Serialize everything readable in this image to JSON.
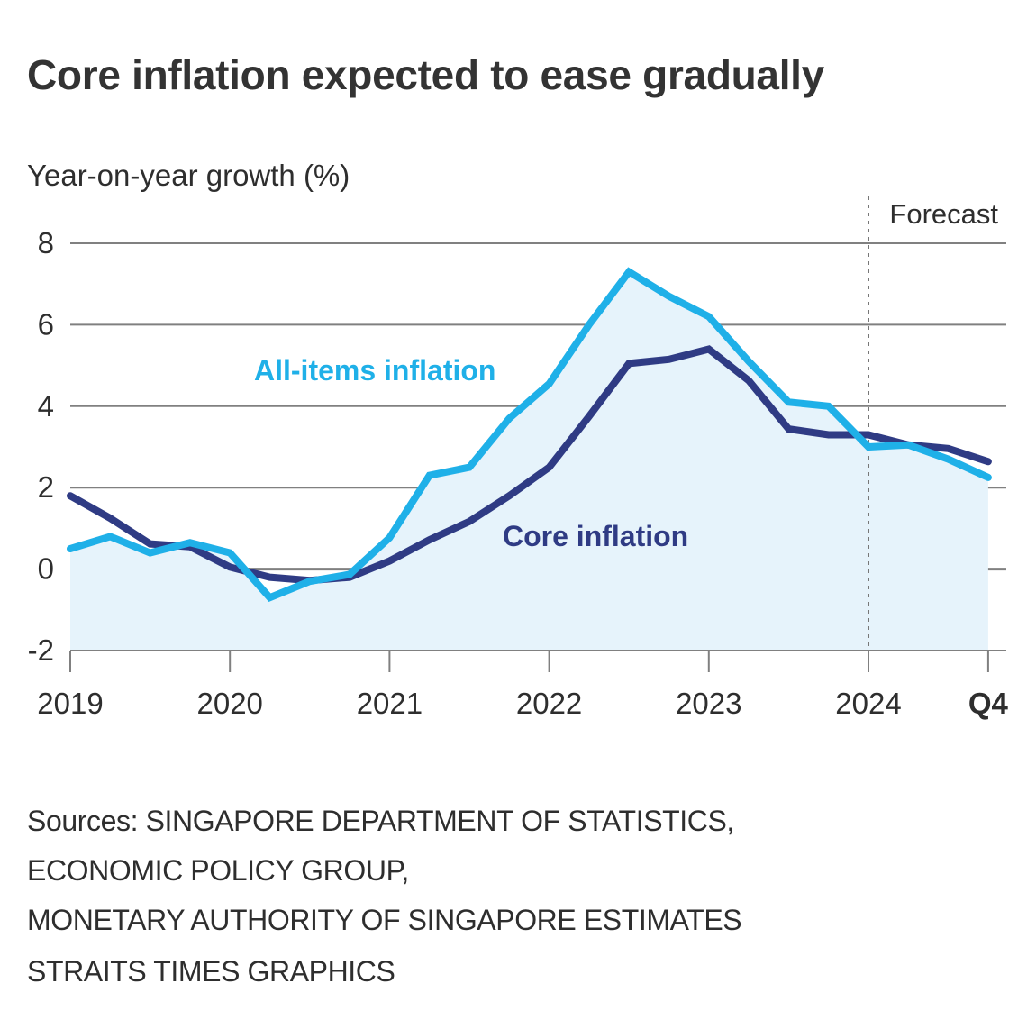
{
  "header": {
    "title": "Core inflation expected to ease gradually"
  },
  "footer": {
    "sources": [
      "Sources: SINGAPORE DEPARTMENT OF STATISTICS,",
      "ECONOMIC POLICY GROUP,",
      "MONETARY AUTHORITY OF SINGAPORE ESTIMATES"
    ],
    "credit": "STRAITS TIMES GRAPHICS"
  },
  "colors": {
    "all_items": "#1fb0e8",
    "core": "#2f3b84",
    "fill": "#e6f3fb",
    "grid": "#808080",
    "text": "#2e2e2e"
  },
  "chart_data": {
    "type": "line",
    "title": "Core inflation expected to ease gradually",
    "xlabel": "",
    "ylabel": "Year-on-year growth (%)",
    "ylim": [
      -2,
      8
    ],
    "yticks": [
      8,
      6,
      4,
      2,
      0,
      -2
    ],
    "grid": true,
    "x": [
      "2019Q1",
      "2019Q2",
      "2019Q3",
      "2019Q4",
      "2020Q1",
      "2020Q2",
      "2020Q3",
      "2020Q4",
      "2021Q1",
      "2021Q2",
      "2021Q3",
      "2021Q4",
      "2022Q1",
      "2022Q2",
      "2022Q3",
      "2022Q4",
      "2023Q1",
      "2023Q2",
      "2023Q3",
      "2023Q4",
      "2024Q1",
      "2024Q2",
      "2024Q3",
      "2024Q4"
    ],
    "xtick_labels": [
      {
        "label": "2019",
        "at": "2019Q1",
        "bold": false
      },
      {
        "label": "2020",
        "at": "2020Q1",
        "bold": false
      },
      {
        "label": "2021",
        "at": "2021Q1",
        "bold": false
      },
      {
        "label": "2022",
        "at": "2022Q1",
        "bold": false
      },
      {
        "label": "2023",
        "at": "2023Q1",
        "bold": false
      },
      {
        "label": "2024",
        "at": "2024Q1",
        "bold": false
      },
      {
        "label": "Q4",
        "at": "2024Q4",
        "bold": true
      }
    ],
    "forecast": {
      "label": "Forecast",
      "start": "2024Q1"
    },
    "series": [
      {
        "name": "All-items inflation",
        "label": "All-items inflation",
        "filled": true,
        "values": [
          0.5,
          0.8,
          0.4,
          0.65,
          0.4,
          -0.7,
          -0.3,
          -0.13,
          0.77,
          2.3,
          2.5,
          3.7,
          4.55,
          6.0,
          7.3,
          6.7,
          6.2,
          5.1,
          4.1,
          4.0,
          3.0,
          3.05,
          2.7,
          2.25
        ]
      },
      {
        "name": "Core inflation",
        "label": "Core inflation",
        "filled": false,
        "values": [
          1.8,
          1.25,
          0.62,
          0.55,
          0.05,
          -0.2,
          -0.28,
          -0.2,
          0.2,
          0.72,
          1.17,
          1.8,
          2.5,
          3.75,
          5.05,
          5.15,
          5.4,
          4.63,
          3.44,
          3.3,
          3.3,
          3.05,
          2.96,
          2.64
        ]
      }
    ]
  }
}
